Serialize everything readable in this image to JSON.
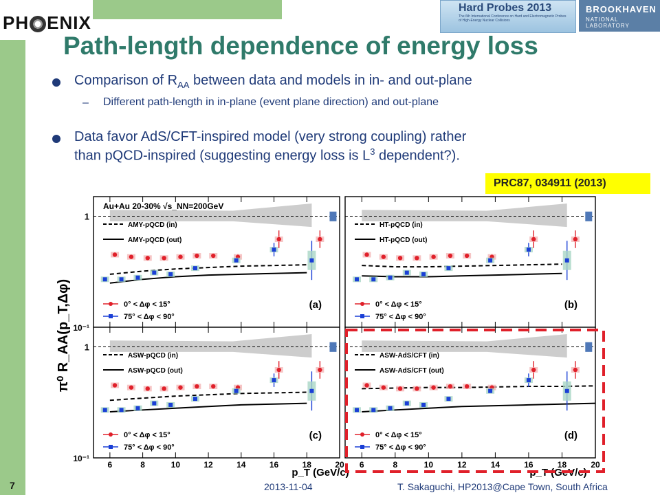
{
  "header": {
    "logo_text_left": "PH",
    "logo_text_right": "ENIX",
    "conference_logo_title": "Hard Probes 2013",
    "conference_logo_sub": "The 6th International Conference on Hard and Electromagnetic Probes of High-Energy Nuclear Collisions",
    "lab_logo_line1": "BROOKHAVEN",
    "lab_logo_line2": "NATIONAL LABORATORY"
  },
  "title": "Path-length dependence of energy loss",
  "bullets": {
    "b1_pre": "Comparison of R",
    "b1_sub": "AA",
    "b1_post": " between data and models in in- and out-plane",
    "b1_dash": "–",
    "b1_subitem": "Different path-length in in-plane (event plane direction) and out-plane",
    "b2_line1": "Data favor AdS/CFT-inspired model (very strong coupling) rather",
    "b2_line2_pre": "than pQCD-inspired (suggesting energy loss is L",
    "b2_sup": "3",
    "b2_line2_post": " dependent?)."
  },
  "reference": "PRC87, 034911 (2013)",
  "footer": {
    "page": "7",
    "date": "2013-11-04",
    "author": "T. Sakaguchi, HP2013@Cape Town, South Africa"
  },
  "chart_data": {
    "type": "scatter",
    "ylabel": "π⁰ R_AA(p_T,Δφ)",
    "xlabel": "p_T (GeV/c)",
    "yscale": "log",
    "ylim": [
      0.1,
      1.5
    ],
    "xlim": [
      5,
      20
    ],
    "x_ticks": [
      6,
      8,
      10,
      12,
      14,
      16,
      18,
      20
    ],
    "y_tick_labels": [
      "10⁻¹",
      "1"
    ],
    "system_label": "Au+Au 20-30% √s_NN=200GeV",
    "legend_data": [
      "0° < Δφ < 15°",
      "75° < Δφ < 90°"
    ],
    "colors": {
      "in_plane": "#e0202a",
      "out_plane": "#1a3fd6",
      "model": "#000000",
      "band": "#c8c8c8",
      "highlight": "#e0202a"
    },
    "in_plane_data": {
      "x": [
        6.3,
        7.3,
        8.3,
        9.3,
        10.3,
        11.3,
        12.3,
        13.8,
        16.3,
        18.8
      ],
      "y": [
        0.45,
        0.43,
        0.42,
        0.42,
        0.43,
        0.44,
        0.44,
        0.43,
        0.62,
        0.62
      ]
    },
    "out_plane_data": {
      "x": [
        5.7,
        6.7,
        7.7,
        8.7,
        9.7,
        11.2,
        13.7,
        16.0,
        18.3
      ],
      "y": [
        0.27,
        0.27,
        0.28,
        0.31,
        0.3,
        0.34,
        0.4,
        0.5,
        0.4
      ]
    },
    "panels": [
      {
        "tag": "(a)",
        "legend_in": "AMY-pQCD (in)",
        "legend_out": "AMY-pQCD (out)",
        "show_system": true,
        "model_in": {
          "x": [
            6,
            8,
            10,
            12,
            14,
            16,
            18
          ],
          "y": [
            0.3,
            0.32,
            0.335,
            0.345,
            0.355,
            0.36,
            0.365
          ]
        },
        "model_out": {
          "x": [
            6,
            8,
            10,
            12,
            14,
            16,
            18
          ],
          "y": [
            0.25,
            0.27,
            0.285,
            0.295,
            0.3,
            0.305,
            0.31
          ]
        }
      },
      {
        "tag": "(b)",
        "legend_in": "HT-pQCD (in)",
        "legend_out": "HT-pQCD (out)",
        "show_system": false,
        "model_in": {
          "x": [
            6,
            8,
            10,
            12,
            14,
            16,
            18
          ],
          "y": [
            0.36,
            0.35,
            0.35,
            0.355,
            0.36,
            0.365,
            0.37
          ]
        },
        "model_out": {
          "x": [
            6,
            8,
            10,
            12,
            14,
            16,
            18
          ],
          "y": [
            0.29,
            0.285,
            0.285,
            0.29,
            0.295,
            0.3,
            0.305
          ]
        }
      },
      {
        "tag": "(c)",
        "legend_in": "ASW-pQCD (in)",
        "legend_out": "ASW-pQCD (out)",
        "show_system": false,
        "model_in": {
          "x": [
            6,
            8,
            10,
            12,
            14,
            16,
            18
          ],
          "y": [
            0.33,
            0.345,
            0.36,
            0.37,
            0.38,
            0.385,
            0.39
          ]
        },
        "model_out": {
          "x": [
            6,
            8,
            10,
            12,
            14,
            16,
            18
          ],
          "y": [
            0.26,
            0.27,
            0.28,
            0.29,
            0.3,
            0.305,
            0.31
          ]
        }
      },
      {
        "tag": "(d)",
        "legend_in": "ASW-AdS/CFT (in)",
        "legend_out": "ASW-AdS/CFT (out)",
        "show_system": false,
        "model_in": {
          "x": [
            6,
            8,
            10,
            12,
            14,
            16,
            18,
            20
          ],
          "y": [
            0.42,
            0.425,
            0.43,
            0.43,
            0.435,
            0.44,
            0.44,
            0.445
          ]
        },
        "model_out": {
          "x": [
            6,
            8,
            10,
            12,
            14,
            16,
            18,
            20
          ],
          "y": [
            0.26,
            0.27,
            0.28,
            0.29,
            0.295,
            0.3,
            0.305,
            0.31
          ]
        }
      }
    ]
  }
}
